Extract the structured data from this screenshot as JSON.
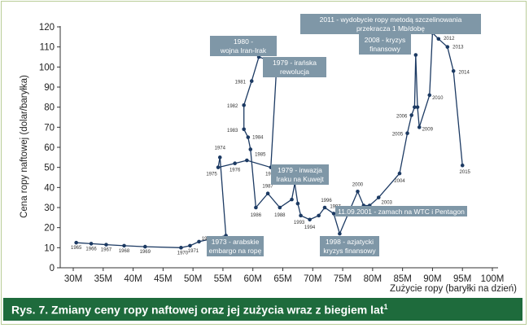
{
  "chart_data": {
    "type": "line",
    "xlabel": "Zużycie ropy (baryłki na dzień)",
    "ylabel": "Cena ropy naftowej (dolar/baryłka)",
    "xlim": [
      30,
      100
    ],
    "ylim": [
      0,
      120
    ],
    "x_ticks": [
      "30M",
      "35M",
      "40M",
      "45M",
      "50M",
      "55M",
      "60M",
      "65M",
      "70M",
      "75M",
      "80M",
      "85M",
      "90M",
      "95M",
      "100M"
    ],
    "y_ticks": [
      0,
      10,
      20,
      30,
      40,
      50,
      60,
      70,
      80,
      90,
      100,
      110,
      120
    ],
    "grid": false,
    "series": [
      {
        "points": [
          {
            "x": 30.5,
            "y": 12.5,
            "label": "1965"
          },
          {
            "x": 33.0,
            "y": 12.0,
            "label": "1966"
          },
          {
            "x": 35.5,
            "y": 11.5,
            "label": "1967"
          },
          {
            "x": 38.5,
            "y": 11.0,
            "label": "1968"
          },
          {
            "x": 42.0,
            "y": 10.5,
            "label": "1969"
          },
          {
            "x": 48.0,
            "y": 10.0,
            "label": "1970"
          },
          {
            "x": 49.5,
            "y": 11.0,
            "label": "1971"
          },
          {
            "x": 51.0,
            "y": 13.0,
            "label": "1972"
          },
          {
            "x": 55.5,
            "y": 16.0,
            "label": ""
          },
          {
            "x": 54.5,
            "y": 55.0,
            "label": "1974"
          },
          {
            "x": 54.2,
            "y": 50.0,
            "label": "1975"
          },
          {
            "x": 57.0,
            "y": 52.0,
            "label": "1976"
          },
          {
            "x": 59.0,
            "y": 53.5,
            "label": ""
          },
          {
            "x": 63.0,
            "y": 50.0,
            "label": "1978"
          },
          {
            "x": 64.0,
            "y": 102.0,
            "label": ""
          },
          {
            "x": 61.0,
            "y": 105.0,
            "label": ""
          },
          {
            "x": 59.8,
            "y": 93.0,
            "label": "1981"
          },
          {
            "x": 58.5,
            "y": 81.0,
            "label": "1982"
          },
          {
            "x": 58.5,
            "y": 69.0,
            "label": "1983"
          },
          {
            "x": 59.2,
            "y": 65.0,
            "label": "1984"
          },
          {
            "x": 59.6,
            "y": 59.0,
            "label": "1985"
          },
          {
            "x": 60.5,
            "y": 30.0,
            "label": "1986"
          },
          {
            "x": 62.5,
            "y": 37.0,
            "label": "1987"
          },
          {
            "x": 64.5,
            "y": 30.0,
            "label": "1988"
          },
          {
            "x": 66.5,
            "y": 34.0,
            "label": ""
          },
          {
            "x": 67.0,
            "y": 42.0,
            "label": ""
          },
          {
            "x": 67.5,
            "y": 32.0,
            "label": ""
          },
          {
            "x": 68.0,
            "y": 26.0,
            "label": "1993"
          },
          {
            "x": 69.5,
            "y": 24.0,
            "label": "1994"
          },
          {
            "x": 71.0,
            "y": 26.0,
            "label": ""
          },
          {
            "x": 72.0,
            "y": 30.0,
            "label": "1996"
          },
          {
            "x": 73.5,
            "y": 27.0,
            "label": "1997"
          },
          {
            "x": 74.5,
            "y": 17.0,
            "label": ""
          },
          {
            "x": 77.5,
            "y": 38.0,
            "label": "2000"
          },
          {
            "x": 78.5,
            "y": 31.0,
            "label": ""
          },
          {
            "x": 79.5,
            "y": 31.0,
            "label": ""
          },
          {
            "x": 81.0,
            "y": 35.0,
            "label": "2003"
          },
          {
            "x": 84.5,
            "y": 47.0,
            "label": "2004"
          },
          {
            "x": 85.8,
            "y": 67.0,
            "label": "2005"
          },
          {
            "x": 86.5,
            "y": 76.0,
            "label": "2006"
          },
          {
            "x": 87.0,
            "y": 80.0,
            "label": ""
          },
          {
            "x": 87.2,
            "y": 106.0,
            "label": ""
          },
          {
            "x": 87.5,
            "y": 80.0,
            "label": ""
          },
          {
            "x": 87.8,
            "y": 70.0,
            "label": "2009"
          },
          {
            "x": 89.5,
            "y": 86.0,
            "label": "2010"
          },
          {
            "x": 90.0,
            "y": 117.0,
            "label": ""
          },
          {
            "x": 91.0,
            "y": 114.0,
            "label": "2012"
          },
          {
            "x": 92.5,
            "y": 110.0,
            "label": "2013"
          },
          {
            "x": 93.5,
            "y": 98.0,
            "label": "2014"
          },
          {
            "x": 95.0,
            "y": 51.0,
            "label": "2015"
          }
        ]
      }
    ],
    "annotations": [
      {
        "lines": [
          "1980 -",
          "wojna Iran-Irak"
        ]
      },
      {
        "lines": [
          "1979 - irańska",
          "rewolucja"
        ]
      },
      {
        "lines": [
          "1973 - arabskie",
          "embargo na ropę"
        ]
      },
      {
        "lines": [
          "1979 - inwazja",
          "Iraku na Kuwejt"
        ]
      },
      {
        "lines": [
          "11.09.2001 - zamach na WTC i Pentagon"
        ]
      },
      {
        "lines": [
          "1998 - azjatycki",
          "kryzys finansowy"
        ]
      },
      {
        "lines": [
          "2008 - kryzys",
          "finansowy"
        ]
      },
      {
        "lines": [
          "2011 - wydobycie ropy metodą szczelinowania",
          "przekracza 1 Mb/dobę"
        ]
      }
    ]
  },
  "caption": {
    "text": "Rys. 7. Zmiany ceny ropy naftowej oraz jej zużycia wraz z biegiem lat",
    "superscript": "1"
  },
  "colors": {
    "line": "#1c3a63",
    "marker": "#1c3a63",
    "annotation_bg": "#7f97a7",
    "annotation_text": "#ffffff",
    "caption_bg": "#1e6b3c",
    "frame": "#b9cc98"
  }
}
